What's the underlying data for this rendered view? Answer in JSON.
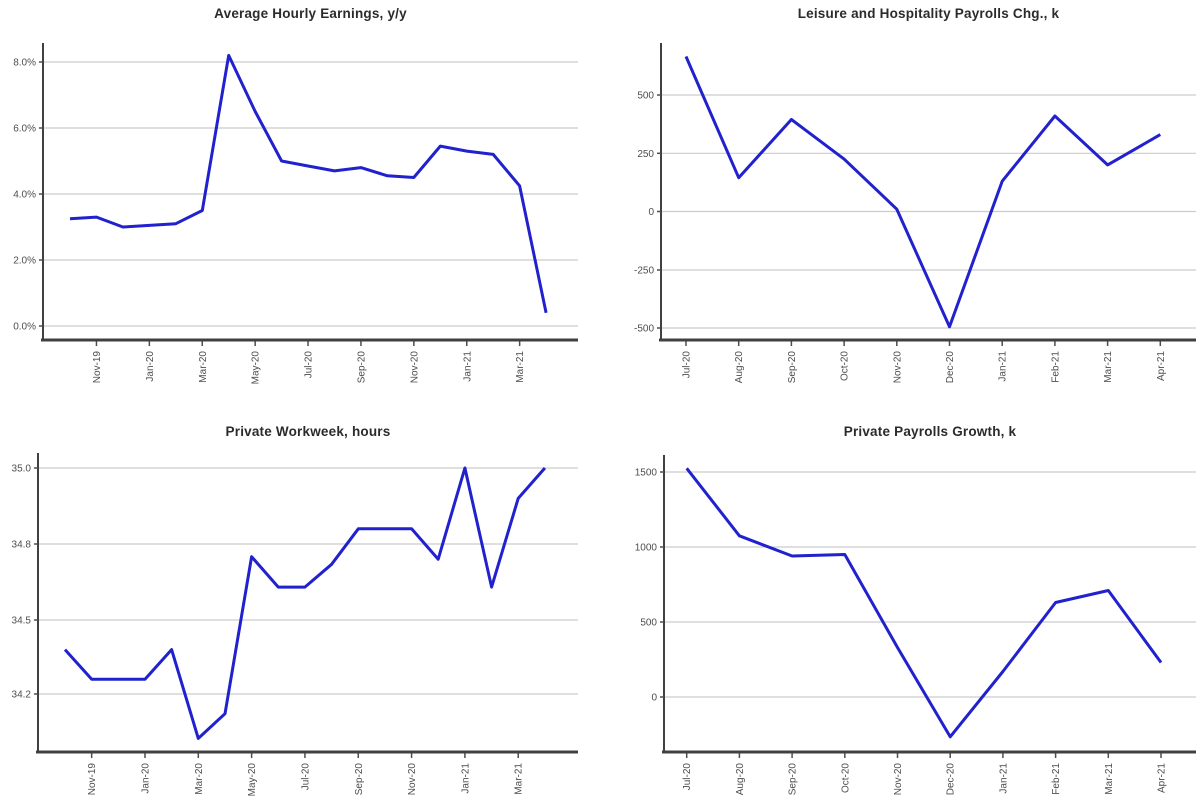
{
  "page": {
    "background": "#ffffff"
  },
  "styles": {
    "line_color": "#2121cd",
    "grid_color": "#cccccc",
    "axis_color": "#404040",
    "label_color": "#4d4d4d",
    "title_color": "#2b2b2b"
  },
  "chart_data": [
    {
      "id": "avg-hourly-earnings",
      "type": "line",
      "title": "Average Hourly Earnings, y/y",
      "xlabel": "",
      "ylabel": "",
      "x": [
        "Oct-19",
        "Nov-19",
        "Dec-19",
        "Jan-20",
        "Feb-20",
        "Mar-20",
        "Apr-20",
        "May-20",
        "Jun-20",
        "Jul-20",
        "Aug-20",
        "Sep-20",
        "Oct-20",
        "Nov-20",
        "Dec-20",
        "Jan-21",
        "Feb-21",
        "Mar-21",
        "Apr-21"
      ],
      "values": [
        3.25,
        3.3,
        3.0,
        3.05,
        3.1,
        3.5,
        8.2,
        6.5,
        5.0,
        4.85,
        4.7,
        4.8,
        4.55,
        4.5,
        5.45,
        5.3,
        5.2,
        4.25,
        0.4
      ],
      "y_ticks": {
        "values": [
          0,
          2,
          4,
          6,
          8
        ],
        "labels": [
          "0.0%",
          "2.0%",
          "4.0%",
          "6.0%",
          "8.0%"
        ]
      },
      "ylim": [
        -0.4,
        8.6
      ],
      "grid": "horizontal",
      "legend": "none",
      "x_ticks": [
        {
          "index": 1,
          "label": "Nov-19"
        },
        {
          "index": 3,
          "label": "Jan-20"
        },
        {
          "index": 5,
          "label": "Mar-20"
        },
        {
          "index": 7,
          "label": "May-20"
        },
        {
          "index": 9,
          "label": "Jul-20"
        },
        {
          "index": 11,
          "label": "Sep-20"
        },
        {
          "index": 13,
          "label": "Nov-20"
        },
        {
          "index": 15,
          "label": "Jan-21"
        },
        {
          "index": 17,
          "label": "Mar-21"
        }
      ]
    },
    {
      "id": "leisure-hospitality-payrolls",
      "type": "line",
      "title": "Leisure and Hospitality Payrolls Chg., k",
      "xlabel": "",
      "ylabel": "",
      "x": [
        "Jul-20",
        "Aug-20",
        "Sep-20",
        "Oct-20",
        "Nov-20",
        "Dec-20",
        "Jan-21",
        "Feb-21",
        "Mar-21",
        "Apr-21"
      ],
      "values": [
        665,
        145,
        395,
        225,
        10,
        -495,
        130,
        410,
        200,
        330
      ],
      "y_ticks": {
        "values": [
          -500,
          -250,
          0,
          250,
          500
        ],
        "labels": [
          "-500",
          "-250",
          "0",
          "250",
          "500"
        ]
      },
      "ylim": [
        -560,
        735
      ],
      "grid": "horizontal",
      "legend": "none",
      "x_ticks": [
        {
          "index": 0,
          "label": "Jul-20"
        },
        {
          "index": 1,
          "label": "Aug-20"
        },
        {
          "index": 2,
          "label": "Sep-20"
        },
        {
          "index": 3,
          "label": "Oct-20"
        },
        {
          "index": 4,
          "label": "Nov-20"
        },
        {
          "index": 5,
          "label": "Dec-20"
        },
        {
          "index": 6,
          "label": "Jan-21"
        },
        {
          "index": 7,
          "label": "Feb-21"
        },
        {
          "index": 8,
          "label": "Mar-21"
        },
        {
          "index": 9,
          "label": "Apr-21"
        }
      ]
    },
    {
      "id": "private-workweek",
      "type": "line",
      "title": "Private Workweek, hours",
      "xlabel": "",
      "ylabel": "",
      "x": [
        "Oct-19",
        "Nov-19",
        "Dec-19",
        "Jan-20",
        "Feb-20",
        "Mar-20",
        "Apr-20",
        "May-20",
        "Jun-20",
        "Jul-20",
        "Aug-20",
        "Sep-20",
        "Oct-20",
        "Nov-20",
        "Dec-20",
        "Jan-21",
        "Feb-21",
        "Mar-21",
        "Apr-21"
      ],
      "values": [
        34.38,
        34.26,
        34.26,
        34.26,
        34.38,
        34.02,
        34.12,
        34.75,
        34.63,
        34.63,
        34.72,
        34.84,
        34.84,
        34.84,
        34.74,
        35.0,
        34.63,
        34.92,
        35.0
      ],
      "y_ticks": {
        "values": [
          34.2,
          34.5,
          34.8,
          35.0
        ],
        "labels": [
          "34.2",
          "34.5",
          "34.8",
          "35.0"
        ]
      },
      "ylim": [
        33.95,
        35.08
      ],
      "grid": "horizontal",
      "legend": "none",
      "axis_note": "tick values unevenly spaced in value but evenly spaced on axis",
      "x_ticks": [
        {
          "index": 1,
          "label": "Nov-19"
        },
        {
          "index": 3,
          "label": "Jan-20"
        },
        {
          "index": 5,
          "label": "Mar-20"
        },
        {
          "index": 7,
          "label": "May-20"
        },
        {
          "index": 9,
          "label": "Jul-20"
        },
        {
          "index": 11,
          "label": "Sep-20"
        },
        {
          "index": 13,
          "label": "Nov-20"
        },
        {
          "index": 15,
          "label": "Jan-21"
        },
        {
          "index": 17,
          "label": "Mar-21"
        }
      ]
    },
    {
      "id": "private-payrolls-growth",
      "type": "line",
      "title": "Private Payrolls Growth, k",
      "xlabel": "",
      "ylabel": "",
      "x": [
        "Jul-20",
        "Aug-20",
        "Sep-20",
        "Oct-20",
        "Nov-20",
        "Dec-20",
        "Jan-21",
        "Feb-21",
        "Mar-21",
        "Apr-21"
      ],
      "values": [
        1525,
        1075,
        940,
        950,
        330,
        -265,
        170,
        630,
        710,
        230
      ],
      "y_ticks": {
        "values": [
          0,
          500,
          1000,
          1500
        ],
        "labels": [
          "0",
          "500",
          "1000",
          "1500"
        ]
      },
      "ylim": [
        -370,
        1660
      ],
      "grid": "horizontal",
      "legend": "none",
      "x_ticks": [
        {
          "index": 0,
          "label": "Jul-20"
        },
        {
          "index": 1,
          "label": "Aug-20"
        },
        {
          "index": 2,
          "label": "Sep-20"
        },
        {
          "index": 3,
          "label": "Oct-20"
        },
        {
          "index": 4,
          "label": "Nov-20"
        },
        {
          "index": 5,
          "label": "Dec-20"
        },
        {
          "index": 6,
          "label": "Jan-21"
        },
        {
          "index": 7,
          "label": "Feb-21"
        },
        {
          "index": 8,
          "label": "Mar-21"
        },
        {
          "index": 9,
          "label": "Apr-21"
        }
      ]
    }
  ]
}
